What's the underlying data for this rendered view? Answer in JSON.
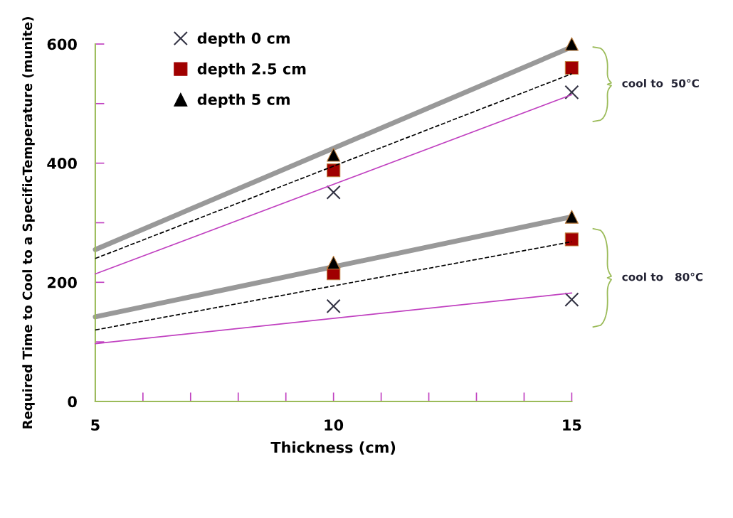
{
  "chart_data": {
    "type": "scatter",
    "xlabel": "Thickness (cm)",
    "ylabel": "Required Time to Cool to a SpecificTemperature (munite)",
    "xlim": [
      5,
      15
    ],
    "xticks": [
      5,
      {
        "value": 6,
        "label": null
      },
      {
        "value": 7,
        "label": null
      },
      {
        "value": 8,
        "label": null
      },
      {
        "value": 9,
        "label": null
      },
      10,
      {
        "value": 11,
        "label": null
      },
      {
        "value": 12,
        "label": null
      },
      {
        "value": 13,
        "label": null
      },
      {
        "value": 14,
        "label": null
      },
      15
    ],
    "ylim": [
      0,
      600
    ],
    "yticks": [
      0,
      {
        "value": 100,
        "label": null
      },
      200,
      {
        "value": 300,
        "label": null
      },
      400,
      {
        "value": 500,
        "label": null
      },
      600
    ],
    "grid": false,
    "legend": "top left",
    "series": [
      {
        "type": "line",
        "color": "#999999",
        "line_style": "solid",
        "x": [
          5,
          15
        ],
        "values": [
          255,
          595
        ]
      },
      {
        "type": "line",
        "color": "#000000",
        "line_style": "dashed",
        "x": [
          5,
          15
        ],
        "values": [
          240,
          550
        ]
      },
      {
        "type": "line",
        "color": "#c040c0",
        "line_style": "solid",
        "x": [
          5,
          15
        ],
        "values": [
          214,
          515
        ]
      },
      {
        "type": "line",
        "color": "#999999",
        "line_style": "solid",
        "x": [
          5,
          15
        ],
        "values": [
          142,
          310
        ]
      },
      {
        "type": "line",
        "color": "#000000",
        "line_style": "dashed",
        "x": [
          5,
          15
        ],
        "values": [
          120,
          268
        ]
      },
      {
        "type": "line",
        "color": "#c040c0",
        "line_style": "solid",
        "x": [
          5,
          15
        ],
        "values": [
          97,
          182
        ]
      },
      {
        "name": "depth 0 cm",
        "marker": "cross",
        "color": "#333344",
        "x": [
          10,
          15,
          10,
          15
        ],
        "values": [
          351,
          519,
          160,
          171
        ]
      },
      {
        "name": "depth 2.5 cm",
        "marker": "square",
        "color": "#a00000",
        "x": [
          10,
          15,
          10,
          15
        ],
        "values": [
          388,
          560,
          215,
          272
        ]
      },
      {
        "name": "depth 5 cm",
        "marker": "triangle",
        "color": "#000000",
        "x": [
          10,
          15,
          10,
          15
        ],
        "values": [
          414,
          600,
          233,
          310
        ]
      }
    ],
    "annotations": [
      "cool to  50°C",
      "cool to   80°C"
    ]
  }
}
